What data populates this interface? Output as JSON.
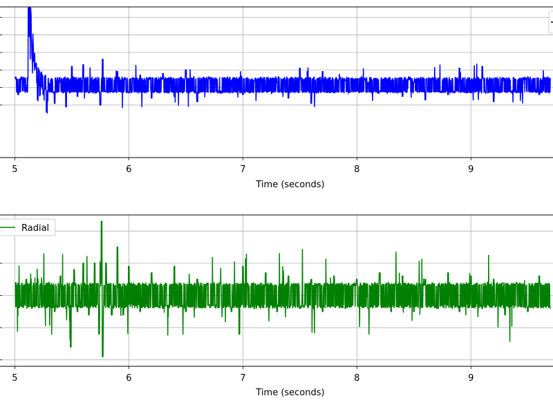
{
  "chart_data": [
    {
      "type": "line",
      "xlabel": "Time (seconds)",
      "ylabel": "",
      "xlim": [
        4.87,
        9.72
      ],
      "ylim": [
        -4.0,
        4.6
      ],
      "xticks": [
        5,
        6,
        7,
        8,
        9
      ],
      "xtick_labels": [
        "5",
        "6",
        "7",
        "8",
        "9"
      ],
      "yticks": [
        -1,
        0,
        1,
        2,
        3,
        4
      ],
      "grid": true,
      "legend": "top-right",
      "series": [
        {
          "color": "#0000ff",
          "x": [
            5.0,
            5.03,
            5.06,
            5.1,
            5.12,
            5.13,
            5.14,
            5.16,
            5.18,
            5.2,
            5.22,
            5.25,
            5.28,
            5.3,
            5.35,
            5.4,
            5.45,
            5.5,
            5.55,
            5.6,
            5.65,
            5.7,
            5.75,
            5.77,
            5.8,
            5.9,
            6.0,
            6.1,
            6.2,
            6.3,
            6.4,
            6.5,
            6.6,
            6.7,
            6.8,
            6.9,
            7.0,
            7.1,
            7.2,
            7.3,
            7.4,
            7.5,
            7.6,
            7.7,
            7.8,
            7.9,
            8.0,
            8.1,
            8.2,
            8.3,
            8.4,
            8.5,
            8.6,
            8.7,
            8.8,
            8.9,
            9.0,
            9.1,
            9.2,
            9.3,
            9.4,
            9.5,
            9.6,
            9.7
          ],
          "y": [
            0.6,
            -0.4,
            0.6,
            -0.2,
            4.5,
            3.5,
            2.2,
            1.3,
            0.3,
            -1.2,
            -0.8,
            -0.6,
            -1.5,
            0.2,
            -0.9,
            0.3,
            -1.1,
            1.2,
            -0.5,
            1.3,
            -0.3,
            0.5,
            -1.0,
            1.6,
            -0.2,
            0.9,
            -0.3,
            0.7,
            -0.6,
            0.8,
            -0.5,
            1.0,
            -0.8,
            0.6,
            -0.3,
            0.4,
            -0.4,
            0.4,
            -0.2,
            0.3,
            -0.6,
            1.1,
            -0.9,
            0.9,
            -0.3,
            0.4,
            -0.2,
            0.3,
            -0.2,
            0.4,
            -0.5,
            0.3,
            -0.7,
            0.4,
            -0.4,
            1.1,
            -0.3,
            1.2,
            -0.8,
            0.5,
            -0.3,
            0.6,
            -0.4,
            0.5
          ]
        }
      ]
    },
    {
      "type": "line",
      "xlabel": "Time (seconds)",
      "ylabel": "",
      "xlim": [
        4.87,
        9.72
      ],
      "ylim": [
        -2.2,
        2.5
      ],
      "xticks": [
        5,
        6,
        7,
        8,
        9
      ],
      "xtick_labels": [
        "5",
        "6",
        "7",
        "8",
        "9"
      ],
      "yticks": [
        -2,
        -1,
        0,
        1,
        2
      ],
      "grid": true,
      "legend": "top-left",
      "series": [
        {
          "name": "Radial",
          "color": "#008000",
          "x": [
            5.0,
            5.05,
            5.1,
            5.15,
            5.2,
            5.25,
            5.3,
            5.35,
            5.4,
            5.45,
            5.49,
            5.52,
            5.55,
            5.6,
            5.65,
            5.7,
            5.74,
            5.76,
            5.77,
            5.8,
            5.85,
            5.9,
            5.95,
            6.0,
            6.1,
            6.2,
            6.3,
            6.4,
            6.5,
            6.6,
            6.7,
            6.8,
            6.9,
            6.97,
            7.0,
            7.1,
            7.2,
            7.3,
            7.4,
            7.5,
            7.6,
            7.7,
            7.8,
            7.9,
            8.0,
            8.1,
            8.2,
            8.3,
            8.4,
            8.5,
            8.6,
            8.7,
            8.8,
            8.9,
            9.0,
            9.1,
            9.2,
            9.3,
            9.4,
            9.5,
            9.6,
            9.7
          ],
          "y": [
            0.4,
            -0.3,
            0.5,
            -0.4,
            0.5,
            -0.3,
            0.4,
            -0.5,
            0.6,
            -0.4,
            -1.6,
            0.8,
            -0.5,
            1.0,
            -0.6,
            1.0,
            -1.2,
            2.3,
            -1.9,
            1.0,
            -0.6,
            1.5,
            -0.6,
            0.9,
            -0.5,
            0.7,
            -0.4,
            0.9,
            -0.5,
            0.5,
            -0.3,
            0.4,
            -0.5,
            -1.2,
            0.9,
            -0.4,
            0.7,
            -0.5,
            0.6,
            -0.4,
            0.5,
            -0.5,
            0.6,
            -0.4,
            0.5,
            -0.4,
            0.7,
            -0.5,
            0.6,
            -0.5,
            0.5,
            -0.4,
            0.7,
            -0.5,
            0.6,
            -0.4,
            0.5,
            -0.6,
            0.4,
            -0.5,
            0.6,
            -0.4
          ]
        }
      ]
    }
  ]
}
